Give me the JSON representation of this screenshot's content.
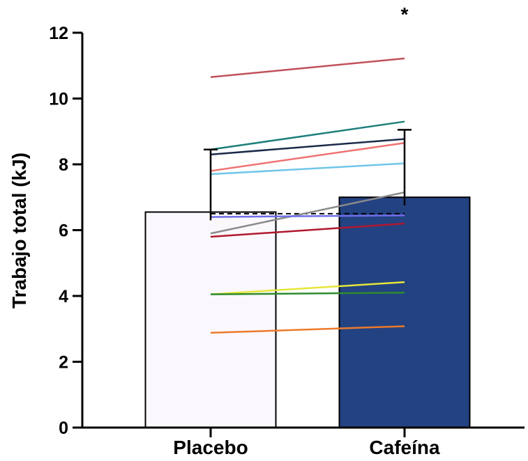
{
  "chart_data": {
    "type": "bar",
    "categories": [
      "Placebo",
      "Cafeína"
    ],
    "ylabel": "Trabajo total (kJ)",
    "ylim": [
      0,
      12
    ],
    "yticks": [
      0,
      2,
      4,
      6,
      8,
      10,
      12
    ],
    "bars": [
      {
        "category": "Placebo",
        "value": 6.55,
        "error_low": 6.3,
        "error_high": 8.45,
        "fill": "#faf8fc"
      },
      {
        "category": "Cafeína",
        "value": 7.0,
        "error_low": 6.75,
        "error_high": 9.05,
        "fill": "#234282"
      }
    ],
    "reference_line": {
      "value": 6.5,
      "style": "dashed"
    },
    "individual_lines": [
      {
        "placebo": 10.65,
        "cafeina": 11.22,
        "color": "#c0505a"
      },
      {
        "placebo": 8.45,
        "cafeina": 9.3,
        "color": "#1e7f7a"
      },
      {
        "placebo": 8.3,
        "cafeina": 8.77,
        "color": "#1b2a4a"
      },
      {
        "placebo": 7.8,
        "cafeina": 8.65,
        "color": "#ef7272"
      },
      {
        "placebo": 7.7,
        "cafeina": 8.03,
        "color": "#6fc6e8"
      },
      {
        "placebo": 5.9,
        "cafeina": 7.15,
        "color": "#8a8a8a"
      },
      {
        "placebo": 6.4,
        "cafeina": 6.45,
        "color": "#6e6ee8"
      },
      {
        "placebo": 5.8,
        "cafeina": 6.2,
        "color": "#b0182e"
      },
      {
        "placebo": 4.05,
        "cafeina": 4.42,
        "color": "#e6e63a"
      },
      {
        "placebo": 4.05,
        "cafeina": 4.1,
        "color": "#2e8b2e"
      },
      {
        "placebo": 2.88,
        "cafeina": 3.08,
        "color": "#ec7a2a"
      }
    ],
    "annotations": [
      {
        "text": "*",
        "category": "Cafeína"
      }
    ]
  }
}
